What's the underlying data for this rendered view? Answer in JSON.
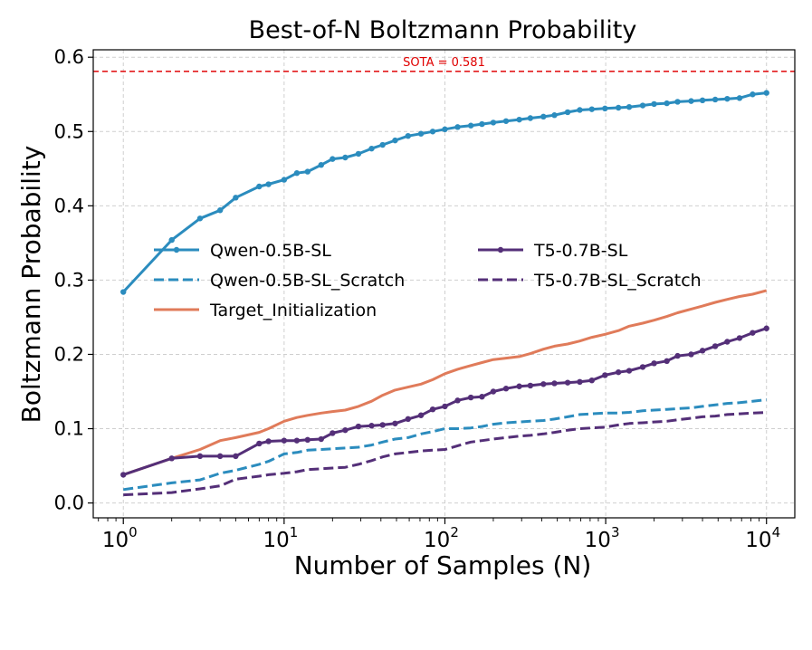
{
  "chart_data": {
    "type": "line",
    "title": "Best-of-N Boltzmann Probability",
    "xlabel": "Number of Samples (N)",
    "ylabel": "Boltzmann Probability",
    "xscale": "log",
    "xlim": [
      0.65,
      15000
    ],
    "ylim": [
      -0.02,
      0.61
    ],
    "grid": true,
    "xticks": [
      {
        "value": 1,
        "base": "10",
        "exp": "0"
      },
      {
        "value": 10,
        "base": "10",
        "exp": "1"
      },
      {
        "value": 100,
        "base": "10",
        "exp": "2"
      },
      {
        "value": 1000,
        "base": "10",
        "exp": "3"
      },
      {
        "value": 10000,
        "base": "10",
        "exp": "4"
      }
    ],
    "yticks": [
      {
        "value": 0.0,
        "label": "0.0"
      },
      {
        "value": 0.1,
        "label": "0.1"
      },
      {
        "value": 0.2,
        "label": "0.2"
      },
      {
        "value": 0.3,
        "label": "0.3"
      },
      {
        "value": 0.4,
        "label": "0.4"
      },
      {
        "value": 0.5,
        "label": "0.5"
      },
      {
        "value": 0.6,
        "label": "0.6"
      }
    ],
    "reference_line": {
      "value": 0.581,
      "label": "SOTA = 0.581",
      "color": "#e31a1c"
    },
    "legend_position": "center-left",
    "series": [
      {
        "name": "Qwen-0.5B-SL",
        "color": "#2b8cbe",
        "style": "solid",
        "markers": true,
        "x": [
          1,
          2,
          3,
          4,
          5,
          7,
          8,
          10,
          12,
          14,
          17,
          20,
          24,
          29,
          35,
          41,
          49,
          59,
          71,
          84,
          100,
          120,
          145,
          170,
          200,
          240,
          290,
          340,
          410,
          480,
          580,
          690,
          820,
          990,
          1200,
          1400,
          1700,
          2000,
          2400,
          2800,
          3400,
          4000,
          4800,
          5700,
          6800,
          8200,
          10000
        ],
        "y": [
          0.284,
          0.354,
          0.383,
          0.394,
          0.411,
          0.426,
          0.429,
          0.435,
          0.444,
          0.446,
          0.455,
          0.463,
          0.465,
          0.47,
          0.477,
          0.482,
          0.488,
          0.494,
          0.497,
          0.5,
          0.503,
          0.506,
          0.508,
          0.51,
          0.512,
          0.514,
          0.516,
          0.518,
          0.52,
          0.522,
          0.526,
          0.529,
          0.53,
          0.531,
          0.532,
          0.533,
          0.535,
          0.537,
          0.538,
          0.54,
          0.541,
          0.542,
          0.543,
          0.544,
          0.545,
          0.55,
          0.552
        ]
      },
      {
        "name": "Qwen-0.5B-SL_Scratch",
        "color": "#2b8cbe",
        "style": "dashed",
        "markers": false,
        "x": [
          1,
          2,
          3,
          4,
          5,
          7,
          8,
          10,
          12,
          14,
          17,
          20,
          24,
          29,
          35,
          41,
          49,
          59,
          71,
          84,
          100,
          120,
          145,
          170,
          200,
          240,
          290,
          340,
          410,
          480,
          580,
          690,
          820,
          990,
          1200,
          1400,
          1700,
          2000,
          2400,
          2800,
          3400,
          4000,
          4800,
          5700,
          6800,
          8200,
          10000
        ],
        "y": [
          0.018,
          0.027,
          0.031,
          0.04,
          0.044,
          0.052,
          0.056,
          0.066,
          0.068,
          0.071,
          0.072,
          0.073,
          0.074,
          0.075,
          0.078,
          0.082,
          0.086,
          0.088,
          0.093,
          0.096,
          0.1,
          0.1,
          0.101,
          0.103,
          0.106,
          0.108,
          0.109,
          0.11,
          0.111,
          0.113,
          0.116,
          0.119,
          0.12,
          0.121,
          0.121,
          0.122,
          0.124,
          0.125,
          0.126,
          0.127,
          0.128,
          0.13,
          0.132,
          0.134,
          0.135,
          0.137,
          0.139
        ]
      },
      {
        "name": "Target_Initialization",
        "color": "#e07b5a",
        "style": "solid",
        "markers": false,
        "x": [
          1,
          2,
          3,
          4,
          5,
          7,
          8,
          10,
          12,
          14,
          17,
          20,
          24,
          29,
          35,
          41,
          49,
          59,
          71,
          84,
          100,
          120,
          145,
          170,
          200,
          240,
          290,
          340,
          410,
          480,
          580,
          690,
          820,
          990,
          1200,
          1400,
          1700,
          2000,
          2400,
          2800,
          3400,
          4000,
          4800,
          5700,
          6800,
          8200,
          10000
        ],
        "y": [
          0.038,
          0.06,
          0.072,
          0.084,
          0.088,
          0.095,
          0.1,
          0.11,
          0.115,
          0.118,
          0.121,
          0.123,
          0.125,
          0.13,
          0.137,
          0.145,
          0.152,
          0.156,
          0.16,
          0.166,
          0.174,
          0.18,
          0.185,
          0.189,
          0.193,
          0.195,
          0.197,
          0.201,
          0.207,
          0.211,
          0.214,
          0.218,
          0.223,
          0.227,
          0.232,
          0.238,
          0.242,
          0.246,
          0.251,
          0.256,
          0.261,
          0.265,
          0.27,
          0.274,
          0.278,
          0.281,
          0.286
        ]
      },
      {
        "name": "T5-0.7B-SL",
        "color": "#542f78",
        "style": "solid",
        "markers": true,
        "x": [
          1,
          2,
          3,
          4,
          5,
          7,
          8,
          10,
          12,
          14,
          17,
          20,
          24,
          29,
          35,
          41,
          49,
          59,
          71,
          84,
          100,
          120,
          145,
          170,
          200,
          240,
          290,
          340,
          410,
          480,
          580,
          690,
          820,
          990,
          1200,
          1400,
          1700,
          2000,
          2400,
          2800,
          3400,
          4000,
          4800,
          5700,
          6800,
          8200,
          10000
        ],
        "y": [
          0.038,
          0.06,
          0.063,
          0.063,
          0.063,
          0.08,
          0.083,
          0.084,
          0.084,
          0.085,
          0.086,
          0.094,
          0.098,
          0.103,
          0.104,
          0.105,
          0.107,
          0.113,
          0.118,
          0.126,
          0.13,
          0.138,
          0.142,
          0.143,
          0.15,
          0.154,
          0.157,
          0.158,
          0.16,
          0.161,
          0.162,
          0.163,
          0.165,
          0.172,
          0.176,
          0.178,
          0.183,
          0.188,
          0.191,
          0.198,
          0.2,
          0.205,
          0.211,
          0.217,
          0.222,
          0.229,
          0.235
        ]
      },
      {
        "name": "T5-0.7B-SL_Scratch",
        "color": "#542f78",
        "style": "dashed",
        "markers": false,
        "x": [
          1,
          2,
          3,
          4,
          5,
          7,
          8,
          10,
          12,
          14,
          17,
          20,
          24,
          29,
          35,
          41,
          49,
          59,
          71,
          84,
          100,
          120,
          145,
          170,
          200,
          240,
          290,
          340,
          410,
          480,
          580,
          690,
          820,
          990,
          1200,
          1400,
          1700,
          2000,
          2400,
          2800,
          3400,
          4000,
          4800,
          5700,
          6800,
          8200,
          10000
        ],
        "y": [
          0.011,
          0.014,
          0.019,
          0.023,
          0.032,
          0.036,
          0.038,
          0.04,
          0.042,
          0.045,
          0.046,
          0.047,
          0.048,
          0.052,
          0.057,
          0.062,
          0.066,
          0.068,
          0.07,
          0.071,
          0.072,
          0.077,
          0.082,
          0.084,
          0.086,
          0.088,
          0.09,
          0.091,
          0.093,
          0.095,
          0.098,
          0.1,
          0.101,
          0.102,
          0.105,
          0.107,
          0.108,
          0.109,
          0.11,
          0.112,
          0.114,
          0.116,
          0.117,
          0.119,
          0.12,
          0.121,
          0.122
        ]
      }
    ]
  }
}
